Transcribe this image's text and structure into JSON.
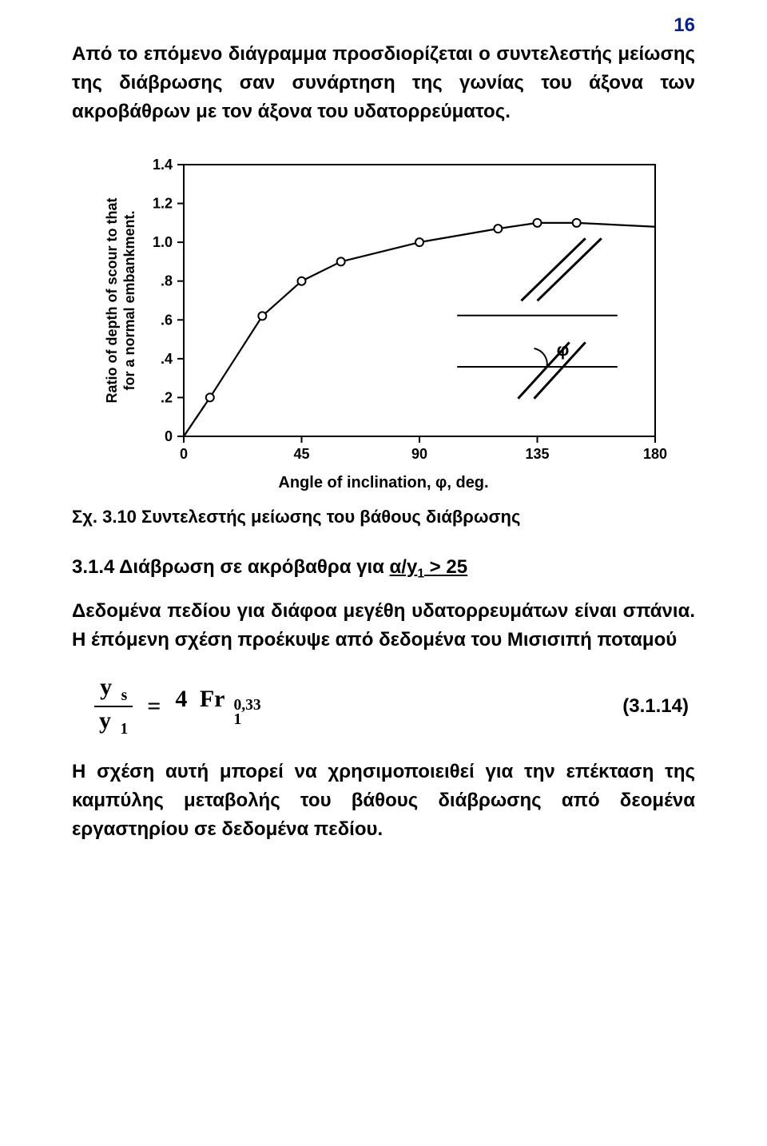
{
  "page_number": "16",
  "para1": "Από το επόμενο διάγραμμα προσδιορίζεται ο συντελεστής μείωσης της διάβρωσης σαν συνάρτηση της γωνίας του άξονα των ακροβάθρων με τον άξονα του υδατορρεύματος.",
  "chart": {
    "type": "line",
    "x_label": "Angle of inclination,  φ, deg.",
    "y_label_line1": "Ratio of depth of scour to that",
    "y_label_line2": "for a normal embankment.",
    "x_ticks": [
      0,
      45,
      90,
      135,
      180
    ],
    "y_ticks": [
      0,
      0.2,
      0.4,
      0.6,
      0.8,
      1.0,
      1.2,
      1.4
    ],
    "y_tick_labels": [
      "0",
      ".2",
      ".4",
      ".6",
      ".8",
      "1.0",
      "1.2",
      "1.4"
    ],
    "xlim": [
      0,
      180
    ],
    "ylim": [
      0,
      1.4
    ],
    "points": [
      {
        "x": 10,
        "y": 0.2
      },
      {
        "x": 30,
        "y": 0.62
      },
      {
        "x": 45,
        "y": 0.8
      },
      {
        "x": 60,
        "y": 0.9
      },
      {
        "x": 90,
        "y": 1.0
      },
      {
        "x": 120,
        "y": 1.07
      },
      {
        "x": 135,
        "y": 1.1
      },
      {
        "x": 150,
        "y": 1.1
      }
    ],
    "curve_extra": [
      {
        "x": 0,
        "y": 0.0
      },
      {
        "x": 10,
        "y": 0.2
      },
      {
        "x": 30,
        "y": 0.62
      },
      {
        "x": 45,
        "y": 0.8
      },
      {
        "x": 60,
        "y": 0.9
      },
      {
        "x": 90,
        "y": 1.0
      },
      {
        "x": 120,
        "y": 1.07
      },
      {
        "x": 135,
        "y": 1.1
      },
      {
        "x": 150,
        "y": 1.1
      },
      {
        "x": 180,
        "y": 1.08
      }
    ],
    "inset_angle_label": "φ",
    "colors": {
      "axis": "#000000",
      "curve": "#000000",
      "marker_fill": "#ffffff",
      "marker_stroke": "#000000",
      "background": "#ffffff"
    },
    "line_width": 2.2,
    "marker_radius": 5,
    "tick_fontsize": 18,
    "label_fontsize": 18
  },
  "fig_caption": "Σχ. 3.10 Συντελεστής μείωσης του βάθους διάβρωσης",
  "subheading_num": "3.1.4 Διάβρωση σε ακρόβαθρα για ",
  "subheading_cond_a": "α/y",
  "subheading_cond_sub": "1",
  "subheading_cond_rest": " > 25",
  "para2": "Δεδομένα πεδίου για διάφοα μεγέθη υδατορρευμάτων είναι σπάνια. Η έπόμενη σχέση προέκυψε από δεδομένα του Μισισιπή ποταμού",
  "equation": {
    "lhs_num": "y",
    "lhs_num_sub": "s",
    "lhs_den": "y",
    "lhs_den_sub": "1",
    "eq_sign": "=",
    "coef": "4",
    "fr": "Fr",
    "fr_sub": "1",
    "exp": "0,33",
    "number": "(3.1.14)"
  },
  "para3": "Η σχέση αυτή μπορεί να χρησιμοποιειθεί για την επέκταση της καμπύλης μεταβολής του βάθους διάβρωσης από δεομένα εργαστηρίου σε δεδομένα πεδίου."
}
